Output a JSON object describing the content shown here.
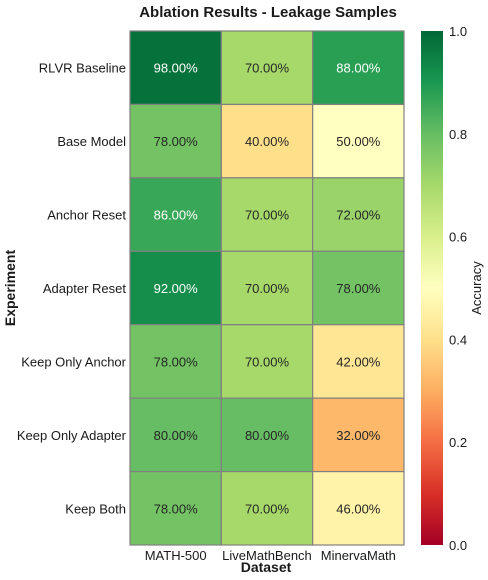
{
  "chart_data": {
    "type": "heatmap",
    "title": "Ablation Results - Leakage Samples",
    "xlabel": "Dataset",
    "ylabel": "Experiment",
    "colorbar_label": "Accuracy",
    "colormap": "RdYlGn",
    "vmin": 0.0,
    "vmax": 1.0,
    "colorbar_ticks": [
      "0.0",
      "0.2",
      "0.4",
      "0.6",
      "0.8",
      "1.0"
    ],
    "colorbar_tick_values": [
      0.0,
      0.2,
      0.4,
      0.6,
      0.8,
      1.0
    ],
    "x_categories": [
      "MATH-500",
      "LiveMathBench",
      "MinervaMath"
    ],
    "y_categories": [
      "RLVR Baseline",
      "Base Model",
      "Anchor Reset",
      "Adapter Reset",
      "Keep Only Anchor",
      "Keep Only Adapter",
      "Keep Both"
    ],
    "values": [
      [
        0.98,
        0.7,
        0.88
      ],
      [
        0.78,
        0.4,
        0.5
      ],
      [
        0.86,
        0.7,
        0.72
      ],
      [
        0.92,
        0.7,
        0.78
      ],
      [
        0.78,
        0.7,
        0.42
      ],
      [
        0.8,
        0.8,
        0.32
      ],
      [
        0.78,
        0.7,
        0.46
      ]
    ],
    "annotations": [
      [
        "98.00%",
        "70.00%",
        "88.00%"
      ],
      [
        "78.00%",
        "40.00%",
        "50.00%"
      ],
      [
        "86.00%",
        "70.00%",
        "72.00%"
      ],
      [
        "92.00%",
        "70.00%",
        "78.00%"
      ],
      [
        "78.00%",
        "70.00%",
        "42.00%"
      ],
      [
        "80.00%",
        "80.00%",
        "32.00%"
      ],
      [
        "78.00%",
        "70.00%",
        "46.00%"
      ]
    ],
    "cell_border_color": "#808080"
  }
}
